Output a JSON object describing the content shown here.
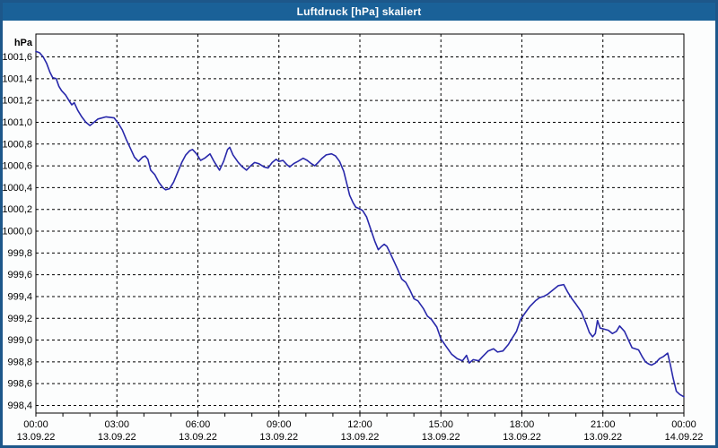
{
  "window": {
    "title": "Luftdruck [hPa] skaliert"
  },
  "colors": {
    "titlebar": "#1a6198",
    "window_border": "#1d578a",
    "background": "#fcfdfd",
    "grid": "#000000",
    "axis": "#000000",
    "series_line": "#2828aa",
    "title_text": "#ffffff",
    "tick_text": "#000000"
  },
  "chart_data": {
    "type": "line",
    "title": "Luftdruck [hPa] skaliert",
    "y_unit_label": "hPa",
    "xlabel": "",
    "ylabel": "hPa",
    "ylim": [
      998.33,
      1001.81
    ],
    "xlim_hours": [
      0,
      24
    ],
    "grid": "dashed-on",
    "legend": "none",
    "y_ticks": [
      {
        "v": 1001.6,
        "label": "1001,6"
      },
      {
        "v": 1001.4,
        "label": "1001,4"
      },
      {
        "v": 1001.2,
        "label": "1001,2"
      },
      {
        "v": 1001.0,
        "label": "1001,0"
      },
      {
        "v": 1000.8,
        "label": "1000,8"
      },
      {
        "v": 1000.6,
        "label": "1000,6"
      },
      {
        "v": 1000.4,
        "label": "1000,4"
      },
      {
        "v": 1000.2,
        "label": "1000,2"
      },
      {
        "v": 1000.0,
        "label": "1000,0"
      },
      {
        "v": 999.8,
        "label": "999,8"
      },
      {
        "v": 999.6,
        "label": "999,6"
      },
      {
        "v": 999.4,
        "label": "999,4"
      },
      {
        "v": 999.2,
        "label": "999,2"
      },
      {
        "v": 999.0,
        "label": "999,0"
      },
      {
        "v": 998.8,
        "label": "998,8"
      },
      {
        "v": 998.6,
        "label": "998,6"
      },
      {
        "v": 998.4,
        "label": "998,4"
      }
    ],
    "x_major_ticks": [
      {
        "hour": 0,
        "time": "00:00",
        "date": "13.09.22"
      },
      {
        "hour": 3,
        "time": "03:00",
        "date": "13.09.22"
      },
      {
        "hour": 6,
        "time": "06:00",
        "date": "13.09.22"
      },
      {
        "hour": 9,
        "time": "09:00",
        "date": "13.09.22"
      },
      {
        "hour": 12,
        "time": "12:00",
        "date": "13.09.22"
      },
      {
        "hour": 15,
        "time": "15:00",
        "date": "13.09.22"
      },
      {
        "hour": 18,
        "time": "18:00",
        "date": "13.09.22"
      },
      {
        "hour": 21,
        "time": "21:00",
        "date": "13.09.22"
      },
      {
        "hour": 24,
        "time": "00:00",
        "date": "14.09.22"
      }
    ],
    "x_minor_tick_every_hours": 1,
    "series": [
      {
        "name": "Luftdruck",
        "color": "#2828aa",
        "points": [
          [
            0.0,
            1001.65
          ],
          [
            0.13,
            1001.64
          ],
          [
            0.27,
            1001.6
          ],
          [
            0.4,
            1001.54
          ],
          [
            0.52,
            1001.46
          ],
          [
            0.62,
            1001.41
          ],
          [
            0.75,
            1001.4
          ],
          [
            0.85,
            1001.33
          ],
          [
            0.95,
            1001.29
          ],
          [
            1.1,
            1001.25
          ],
          [
            1.25,
            1001.19
          ],
          [
            1.33,
            1001.16
          ],
          [
            1.42,
            1001.18
          ],
          [
            1.55,
            1001.11
          ],
          [
            1.7,
            1001.05
          ],
          [
            1.85,
            1001.0
          ],
          [
            2.0,
            1000.97
          ],
          [
            2.15,
            1001.0
          ],
          [
            2.3,
            1001.03
          ],
          [
            2.6,
            1001.05
          ],
          [
            2.9,
            1001.04
          ],
          [
            3.05,
            1000.99
          ],
          [
            3.2,
            1000.93
          ],
          [
            3.35,
            1000.84
          ],
          [
            3.5,
            1000.76
          ],
          [
            3.65,
            1000.68
          ],
          [
            3.8,
            1000.64
          ],
          [
            3.95,
            1000.68
          ],
          [
            4.05,
            1000.69
          ],
          [
            4.15,
            1000.66
          ],
          [
            4.25,
            1000.56
          ],
          [
            4.4,
            1000.52
          ],
          [
            4.55,
            1000.45
          ],
          [
            4.7,
            1000.4
          ],
          [
            4.8,
            1000.38
          ],
          [
            4.95,
            1000.39
          ],
          [
            5.1,
            1000.45
          ],
          [
            5.25,
            1000.54
          ],
          [
            5.4,
            1000.63
          ],
          [
            5.55,
            1000.7
          ],
          [
            5.7,
            1000.74
          ],
          [
            5.8,
            1000.75
          ],
          [
            5.95,
            1000.71
          ],
          [
            6.1,
            1000.65
          ],
          [
            6.25,
            1000.67
          ],
          [
            6.45,
            1000.71
          ],
          [
            6.6,
            1000.64
          ],
          [
            6.8,
            1000.56
          ],
          [
            6.95,
            1000.64
          ],
          [
            7.1,
            1000.75
          ],
          [
            7.18,
            1000.77
          ],
          [
            7.3,
            1000.7
          ],
          [
            7.5,
            1000.63
          ],
          [
            7.65,
            1000.59
          ],
          [
            7.8,
            1000.56
          ],
          [
            7.95,
            1000.6
          ],
          [
            8.1,
            1000.63
          ],
          [
            8.25,
            1000.62
          ],
          [
            8.45,
            1000.59
          ],
          [
            8.6,
            1000.58
          ],
          [
            8.75,
            1000.63
          ],
          [
            8.9,
            1000.66
          ],
          [
            9.0,
            1000.64
          ],
          [
            9.15,
            1000.65
          ],
          [
            9.3,
            1000.61
          ],
          [
            9.4,
            1000.59
          ],
          [
            9.55,
            1000.62
          ],
          [
            9.7,
            1000.64
          ],
          [
            9.9,
            1000.67
          ],
          [
            10.05,
            1000.65
          ],
          [
            10.2,
            1000.62
          ],
          [
            10.33,
            1000.6
          ],
          [
            10.45,
            1000.63
          ],
          [
            10.6,
            1000.67
          ],
          [
            10.75,
            1000.7
          ],
          [
            10.95,
            1000.71
          ],
          [
            11.1,
            1000.69
          ],
          [
            11.25,
            1000.64
          ],
          [
            11.4,
            1000.55
          ],
          [
            11.5,
            1000.45
          ],
          [
            11.62,
            1000.33
          ],
          [
            11.75,
            1000.26
          ],
          [
            11.85,
            1000.22
          ],
          [
            11.95,
            1000.21
          ],
          [
            12.1,
            1000.19
          ],
          [
            12.25,
            1000.13
          ],
          [
            12.4,
            1000.02
          ],
          [
            12.55,
            999.91
          ],
          [
            12.68,
            999.83
          ],
          [
            12.8,
            999.86
          ],
          [
            12.9,
            999.88
          ],
          [
            13.0,
            999.86
          ],
          [
            13.1,
            999.81
          ],
          [
            13.25,
            999.73
          ],
          [
            13.4,
            999.65
          ],
          [
            13.55,
            999.56
          ],
          [
            13.7,
            999.53
          ],
          [
            13.85,
            999.46
          ],
          [
            14.0,
            999.38
          ],
          [
            14.15,
            999.36
          ],
          [
            14.35,
            999.29
          ],
          [
            14.5,
            999.22
          ],
          [
            14.65,
            999.19
          ],
          [
            14.85,
            999.12
          ],
          [
            15.0,
            999.01
          ],
          [
            15.2,
            998.94
          ],
          [
            15.4,
            998.87
          ],
          [
            15.6,
            998.83
          ],
          [
            15.8,
            998.81
          ],
          [
            15.95,
            998.86
          ],
          [
            16.05,
            998.79
          ],
          [
            16.2,
            998.82
          ],
          [
            16.4,
            998.81
          ],
          [
            16.55,
            998.85
          ],
          [
            16.75,
            998.9
          ],
          [
            16.95,
            998.92
          ],
          [
            17.1,
            998.89
          ],
          [
            17.3,
            998.9
          ],
          [
            17.5,
            998.96
          ],
          [
            17.62,
            999.01
          ],
          [
            17.8,
            999.08
          ],
          [
            17.95,
            999.19
          ],
          [
            18.15,
            999.26
          ],
          [
            18.3,
            999.31
          ],
          [
            18.5,
            999.36
          ],
          [
            18.65,
            999.39
          ],
          [
            18.8,
            999.4
          ],
          [
            18.95,
            999.42
          ],
          [
            19.15,
            999.46
          ],
          [
            19.35,
            999.5
          ],
          [
            19.55,
            999.51
          ],
          [
            19.7,
            999.44
          ],
          [
            19.85,
            999.38
          ],
          [
            20.0,
            999.33
          ],
          [
            20.2,
            999.26
          ],
          [
            20.35,
            999.17
          ],
          [
            20.5,
            999.07
          ],
          [
            20.62,
            999.03
          ],
          [
            20.72,
            999.06
          ],
          [
            20.8,
            999.18
          ],
          [
            20.9,
            999.11
          ],
          [
            21.05,
            999.1
          ],
          [
            21.2,
            999.09
          ],
          [
            21.35,
            999.06
          ],
          [
            21.5,
            999.08
          ],
          [
            21.62,
            999.13
          ],
          [
            21.8,
            999.08
          ],
          [
            21.95,
            999.0
          ],
          [
            22.08,
            998.93
          ],
          [
            22.2,
            998.92
          ],
          [
            22.32,
            998.91
          ],
          [
            22.45,
            998.85
          ],
          [
            22.58,
            998.8
          ],
          [
            22.7,
            998.78
          ],
          [
            22.8,
            998.77
          ],
          [
            22.95,
            998.79
          ],
          [
            23.1,
            998.83
          ],
          [
            23.25,
            998.85
          ],
          [
            23.4,
            998.88
          ],
          [
            23.5,
            998.77
          ],
          [
            23.6,
            998.65
          ],
          [
            23.72,
            998.53
          ],
          [
            23.85,
            998.5
          ],
          [
            24.0,
            998.48
          ]
        ]
      }
    ]
  }
}
